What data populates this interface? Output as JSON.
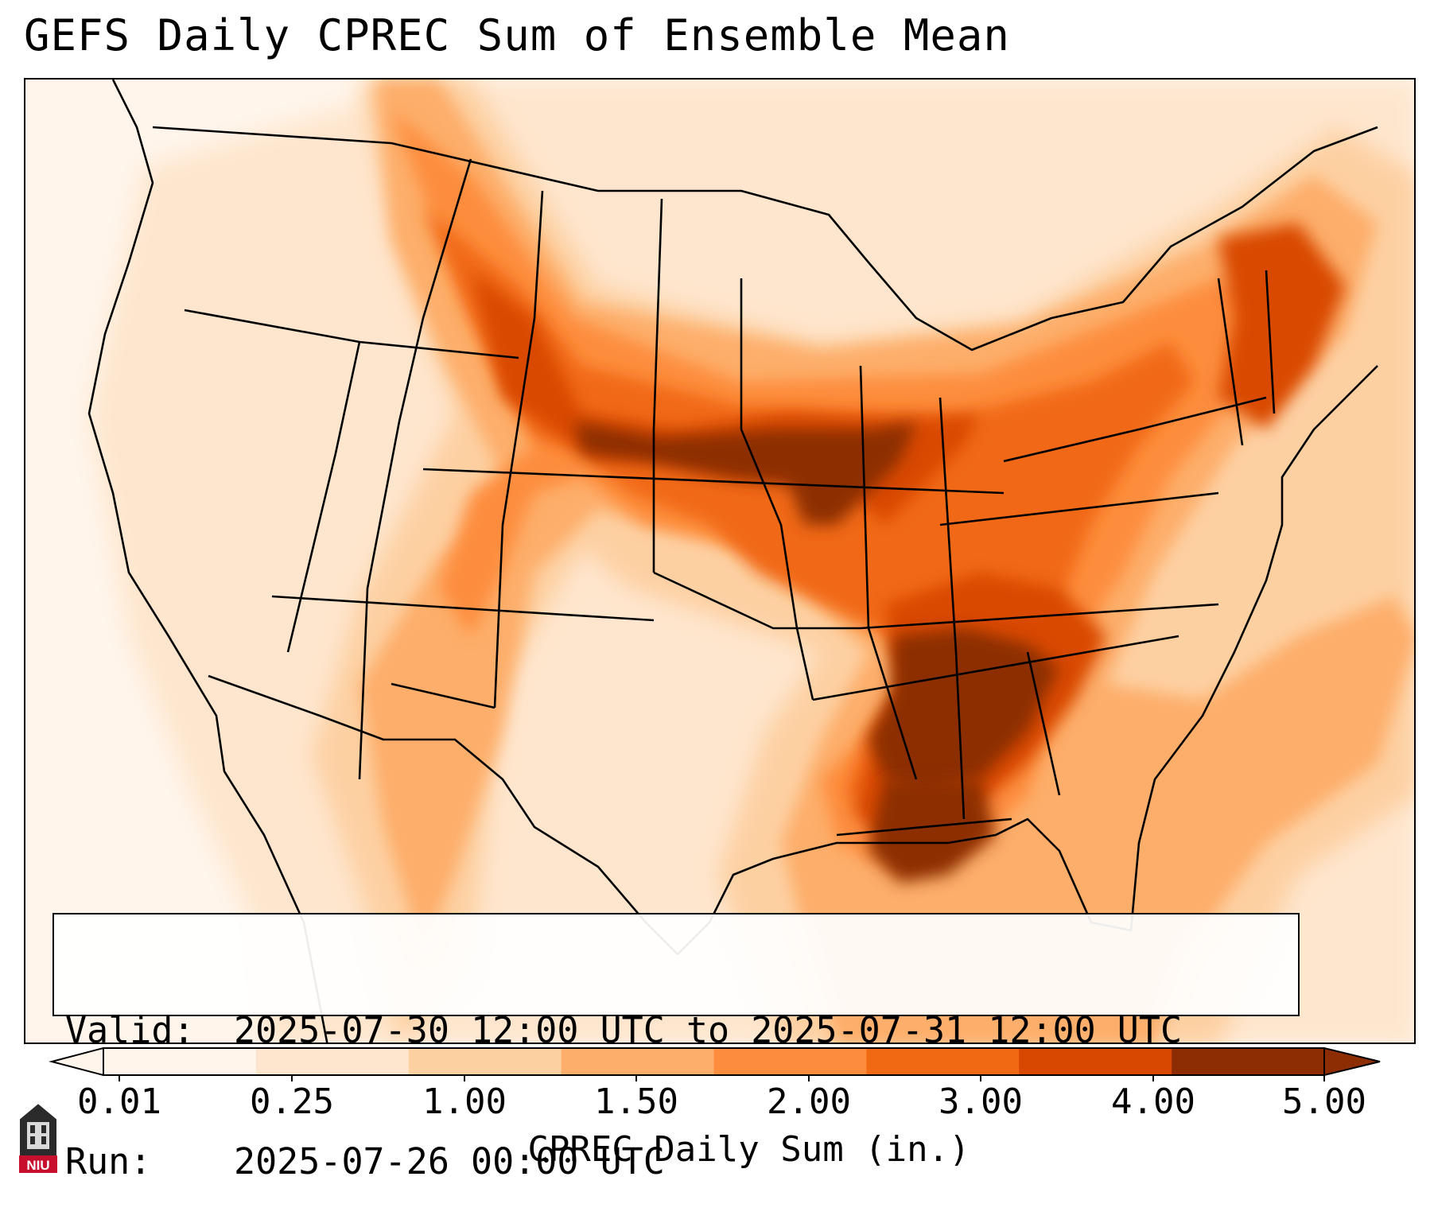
{
  "title": "GEFS Daily CPREC Sum of Ensemble Mean",
  "info": {
    "valid_label": "Valid:",
    "valid_value": "2025-07-30 12:00 UTC to 2025-07-31 12:00 UTC",
    "run_label": "Run:",
    "run_value": "2025-07-26 00:00 UTC"
  },
  "colorbar": {
    "label": "CPREC Daily Sum (in.)",
    "ticks": [
      "0.01",
      "0.25",
      "1.00",
      "1.50",
      "2.00",
      "3.00",
      "4.00",
      "5.00"
    ],
    "colors": [
      "#fff5eb",
      "#fee6ce",
      "#fdd0a2",
      "#fdae6b",
      "#fd8d3c",
      "#f16913",
      "#d94801",
      "#8c2d04"
    ],
    "extend": "both"
  },
  "logo": {
    "text": "NIU",
    "color": "#c8102e"
  },
  "map": {
    "region": "Continental United States",
    "variable": "CPREC",
    "heaviest_areas": [
      "Central Plains",
      "Upper Midwest",
      "Lower Mississippi Valley",
      "Southeast",
      "Gulf of Mexico",
      "Northeast"
    ]
  }
}
